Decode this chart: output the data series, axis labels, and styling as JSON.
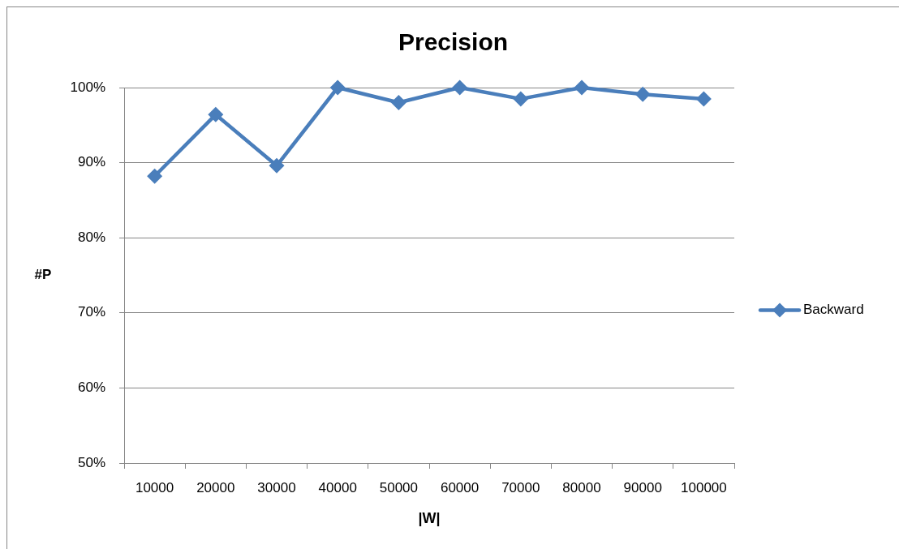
{
  "chart_data": {
    "type": "line",
    "title": "Precision",
    "xlabel": "|W|",
    "ylabel": "#P",
    "categories": [
      "10000",
      "20000",
      "30000",
      "40000",
      "50000",
      "60000",
      "70000",
      "80000",
      "90000",
      "100000"
    ],
    "series": [
      {
        "name": "Backward",
        "color": "#4a7ebb",
        "values": [
          88.2,
          96.4,
          89.6,
          100,
          98,
          100,
          98.5,
          100,
          99.1,
          98.5
        ]
      }
    ],
    "ylim": [
      50,
      100
    ],
    "yticks": [
      {
        "value": 50,
        "label": "50%"
      },
      {
        "value": 60,
        "label": "60%"
      },
      {
        "value": 70,
        "label": "70%"
      },
      {
        "value": 80,
        "label": "80%"
      },
      {
        "value": 90,
        "label": "90%"
      },
      {
        "value": 100,
        "label": "100%"
      }
    ],
    "grid": "y",
    "legend": "right",
    "marker": "diamond",
    "line_style": "solid"
  }
}
